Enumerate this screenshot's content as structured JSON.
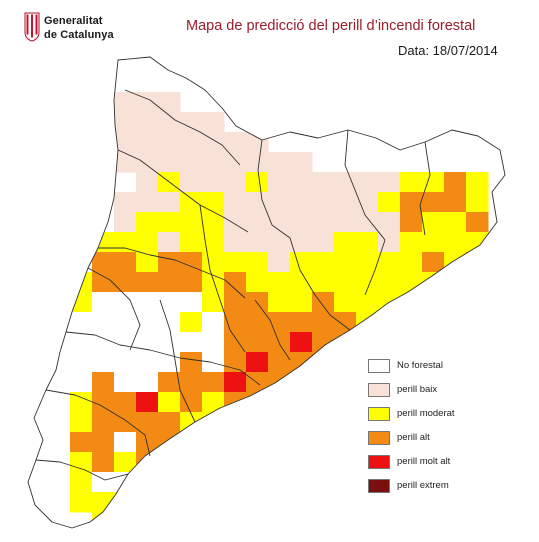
{
  "header": {
    "org_line1": "Generalitat",
    "org_line2": "de Catalunya",
    "title": "Mapa de predicció del perill d’incendi forestal",
    "date": "Data: 18/07/2014"
  },
  "legend": [
    {
      "label": "No forestal",
      "color": "#ffffff"
    },
    {
      "label": "perill baix",
      "color": "#f8e2d8"
    },
    {
      "label": "perill moderat",
      "color": "#ffff00"
    },
    {
      "label": "perill alt",
      "color": "#f28a14"
    },
    {
      "label": "perill molt alt",
      "color": "#ee1111"
    },
    {
      "label": "perill extrem",
      "color": "#7a0f0f"
    }
  ],
  "map": {
    "colors": [
      "#ffffff",
      "#f8e2d8",
      "#ffff00",
      "#f28a14",
      "#ee1111",
      "#7a0f0f"
    ],
    "cell_codes": "W = No forestal, L = perill baix, Y = perill moderat, O = perill alt, R = perill molt alt, X = perill extrem",
    "grid_rows": [
      "......................",
      "......................",
      "....LLL...............",
      "....LLLLL.............",
      "....LLLLLLL...........",
      "....LLLLLLLLL.........",
      ".....LYLLLYLLLLLLYYOY.",
      "....LLLYYLLLLLLLYOOOY.",
      "....LYYYYLLLLLLLLOYYO.",
      "...YYYLYYLLLLLYYLYYYYY",
      "...OOYOOYYYLYYYYYYOYOY",
      "..YOOOOOYOYYYYYYYYYYOY",
      "..YWWWWWYOOYYOYYYYYYYY",
      "..WWWWWYWOOOOOOYYYYYY.",
      "..WWWWWWWOOOROOYYYYY..",
      "...WWWWOWOROOOOYYYY...",
      "...OWWOOOROOOYYYYY....",
      "..YOORYOYOOOYYYYY.....",
      "..YOOOOYYYYYYYYY......",
      "..OOWOOYYYYYYYY.......",
      "..YOYOOYYYYYY.........",
      "..YWWYYYYYY...........",
      "..YYYYYYYY............",
      "...YWWYYY.............",
      "....WYY..............."
    ]
  }
}
